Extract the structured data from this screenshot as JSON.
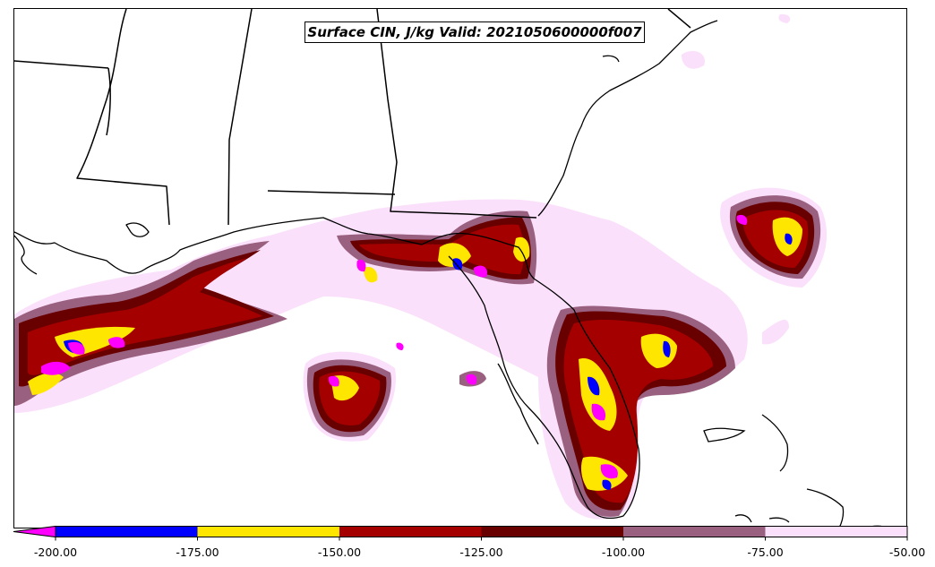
{
  "map": {
    "title": "Surface CIN, J/kg Valid: 2021050600000f007"
  },
  "colorbar": {
    "tick_labels": [
      "-200.00",
      "-175.00",
      "-150.00",
      "-125.00",
      "-100.00",
      "-75.00",
      "-50.00"
    ],
    "bins": [
      {
        "from": -200,
        "to": -175,
        "color": "#0000ff"
      },
      {
        "from": -175,
        "to": -150,
        "color": "#ffe600"
      },
      {
        "from": -150,
        "to": -125,
        "color": "#a50000"
      },
      {
        "from": -125,
        "to": -100,
        "color": "#680000"
      },
      {
        "from": -100,
        "to": -75,
        "color": "#9a6080"
      },
      {
        "from": -75,
        "to": -50,
        "color": "#fbe0fb"
      }
    ],
    "extend_low_color": "#ff00ff"
  }
}
